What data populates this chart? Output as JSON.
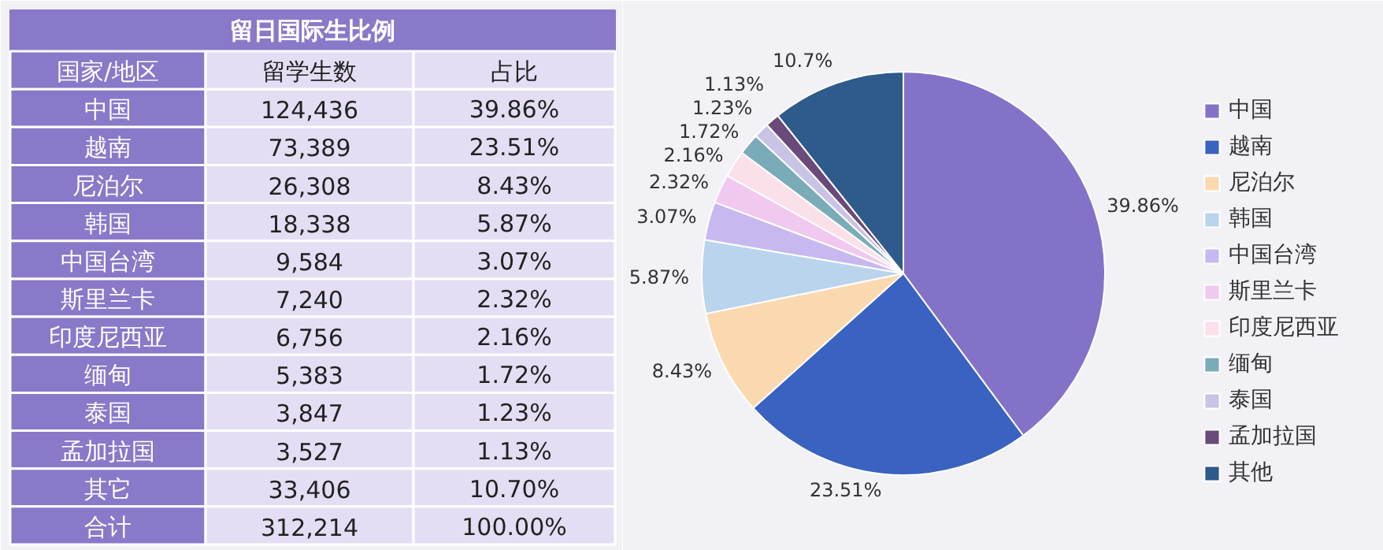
{
  "chart_data": [
    {
      "type": "other",
      "title": "留日国际生比例",
      "annotations": [
        "国家/地区",
        "留学生数",
        "占比",
        "中国",
        "124,436",
        "39.86%",
        "越南",
        "73,389",
        "23.51%",
        "尼泊尔",
        "26,308",
        "8.43%",
        "韩国",
        "18,338",
        "5.87%",
        "中国台湾",
        "9,584",
        "3.07%",
        "斯里兰卡",
        "7,240",
        "2.32%",
        "印度尼西亚",
        "6,756",
        "2.16%",
        "缅甸",
        "5,383",
        "1.72%",
        "泰国",
        "3,847",
        "1.23%",
        "孟加拉国",
        "3,527",
        "1.13%",
        "其它",
        "33,406",
        "10.70%",
        "合计",
        "312,214",
        "100.00%"
      ]
    },
    {
      "type": "pie",
      "categories": [
        "中国",
        "越南",
        "尼泊尔",
        "韩国",
        "中国台湾",
        "斯里兰卡",
        "印度尼西亚",
        "缅甸",
        "泰国",
        "孟加拉国",
        "其他"
      ],
      "values": [
        39.86,
        23.51,
        8.43,
        5.87,
        3.07,
        2.32,
        2.16,
        1.72,
        1.23,
        1.13,
        10.7
      ],
      "colors": [
        "#8472c8",
        "#3a62c0",
        "#fbd9b0",
        "#b9d4ec",
        "#c7b9f0",
        "#f0c8f0",
        "#fbe0ea",
        "#7aabb8",
        "#c9c3e6",
        "#6a4a7a",
        "#2e5a8c"
      ],
      "value_labels": [
        "39.86%",
        "23.51%",
        "8.43%",
        "5.87%",
        "3.07%",
        "2.32%",
        "2.16%",
        "1.72%",
        "1.23%",
        "1.13%",
        "10.7%"
      ],
      "legend": "right"
    }
  ]
}
